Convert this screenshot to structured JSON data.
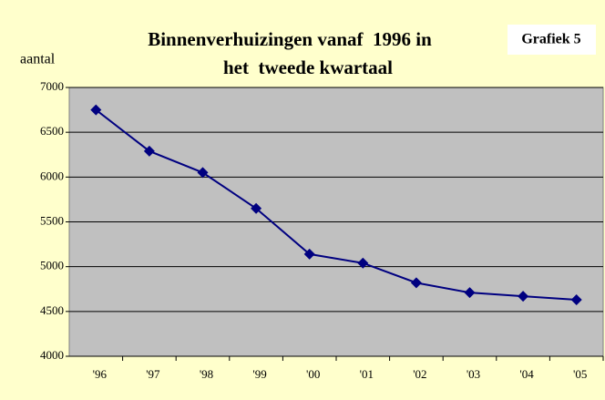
{
  "chart_data": {
    "type": "line",
    "title": [
      "Binnenverhuizingen vanaf  1996 in",
      "het  tweede kwartaal"
    ],
    "annotation": "Grafiek 5",
    "ylabel": "aantal",
    "categories": [
      "'96",
      "'97",
      "'98",
      "'99",
      "'00",
      "'01",
      "'02",
      "'03",
      "'04",
      "'05"
    ],
    "series": [
      {
        "name": "aantal",
        "color": "#000080",
        "values": [
          6750,
          6290,
          6050,
          5650,
          5140,
          5040,
          4820,
          4710,
          4670,
          4630
        ]
      }
    ],
    "ylim": [
      4000,
      7000
    ],
    "yticks": [
      4000,
      4500,
      5000,
      5500,
      6000,
      6500,
      7000
    ],
    "grid": true
  }
}
